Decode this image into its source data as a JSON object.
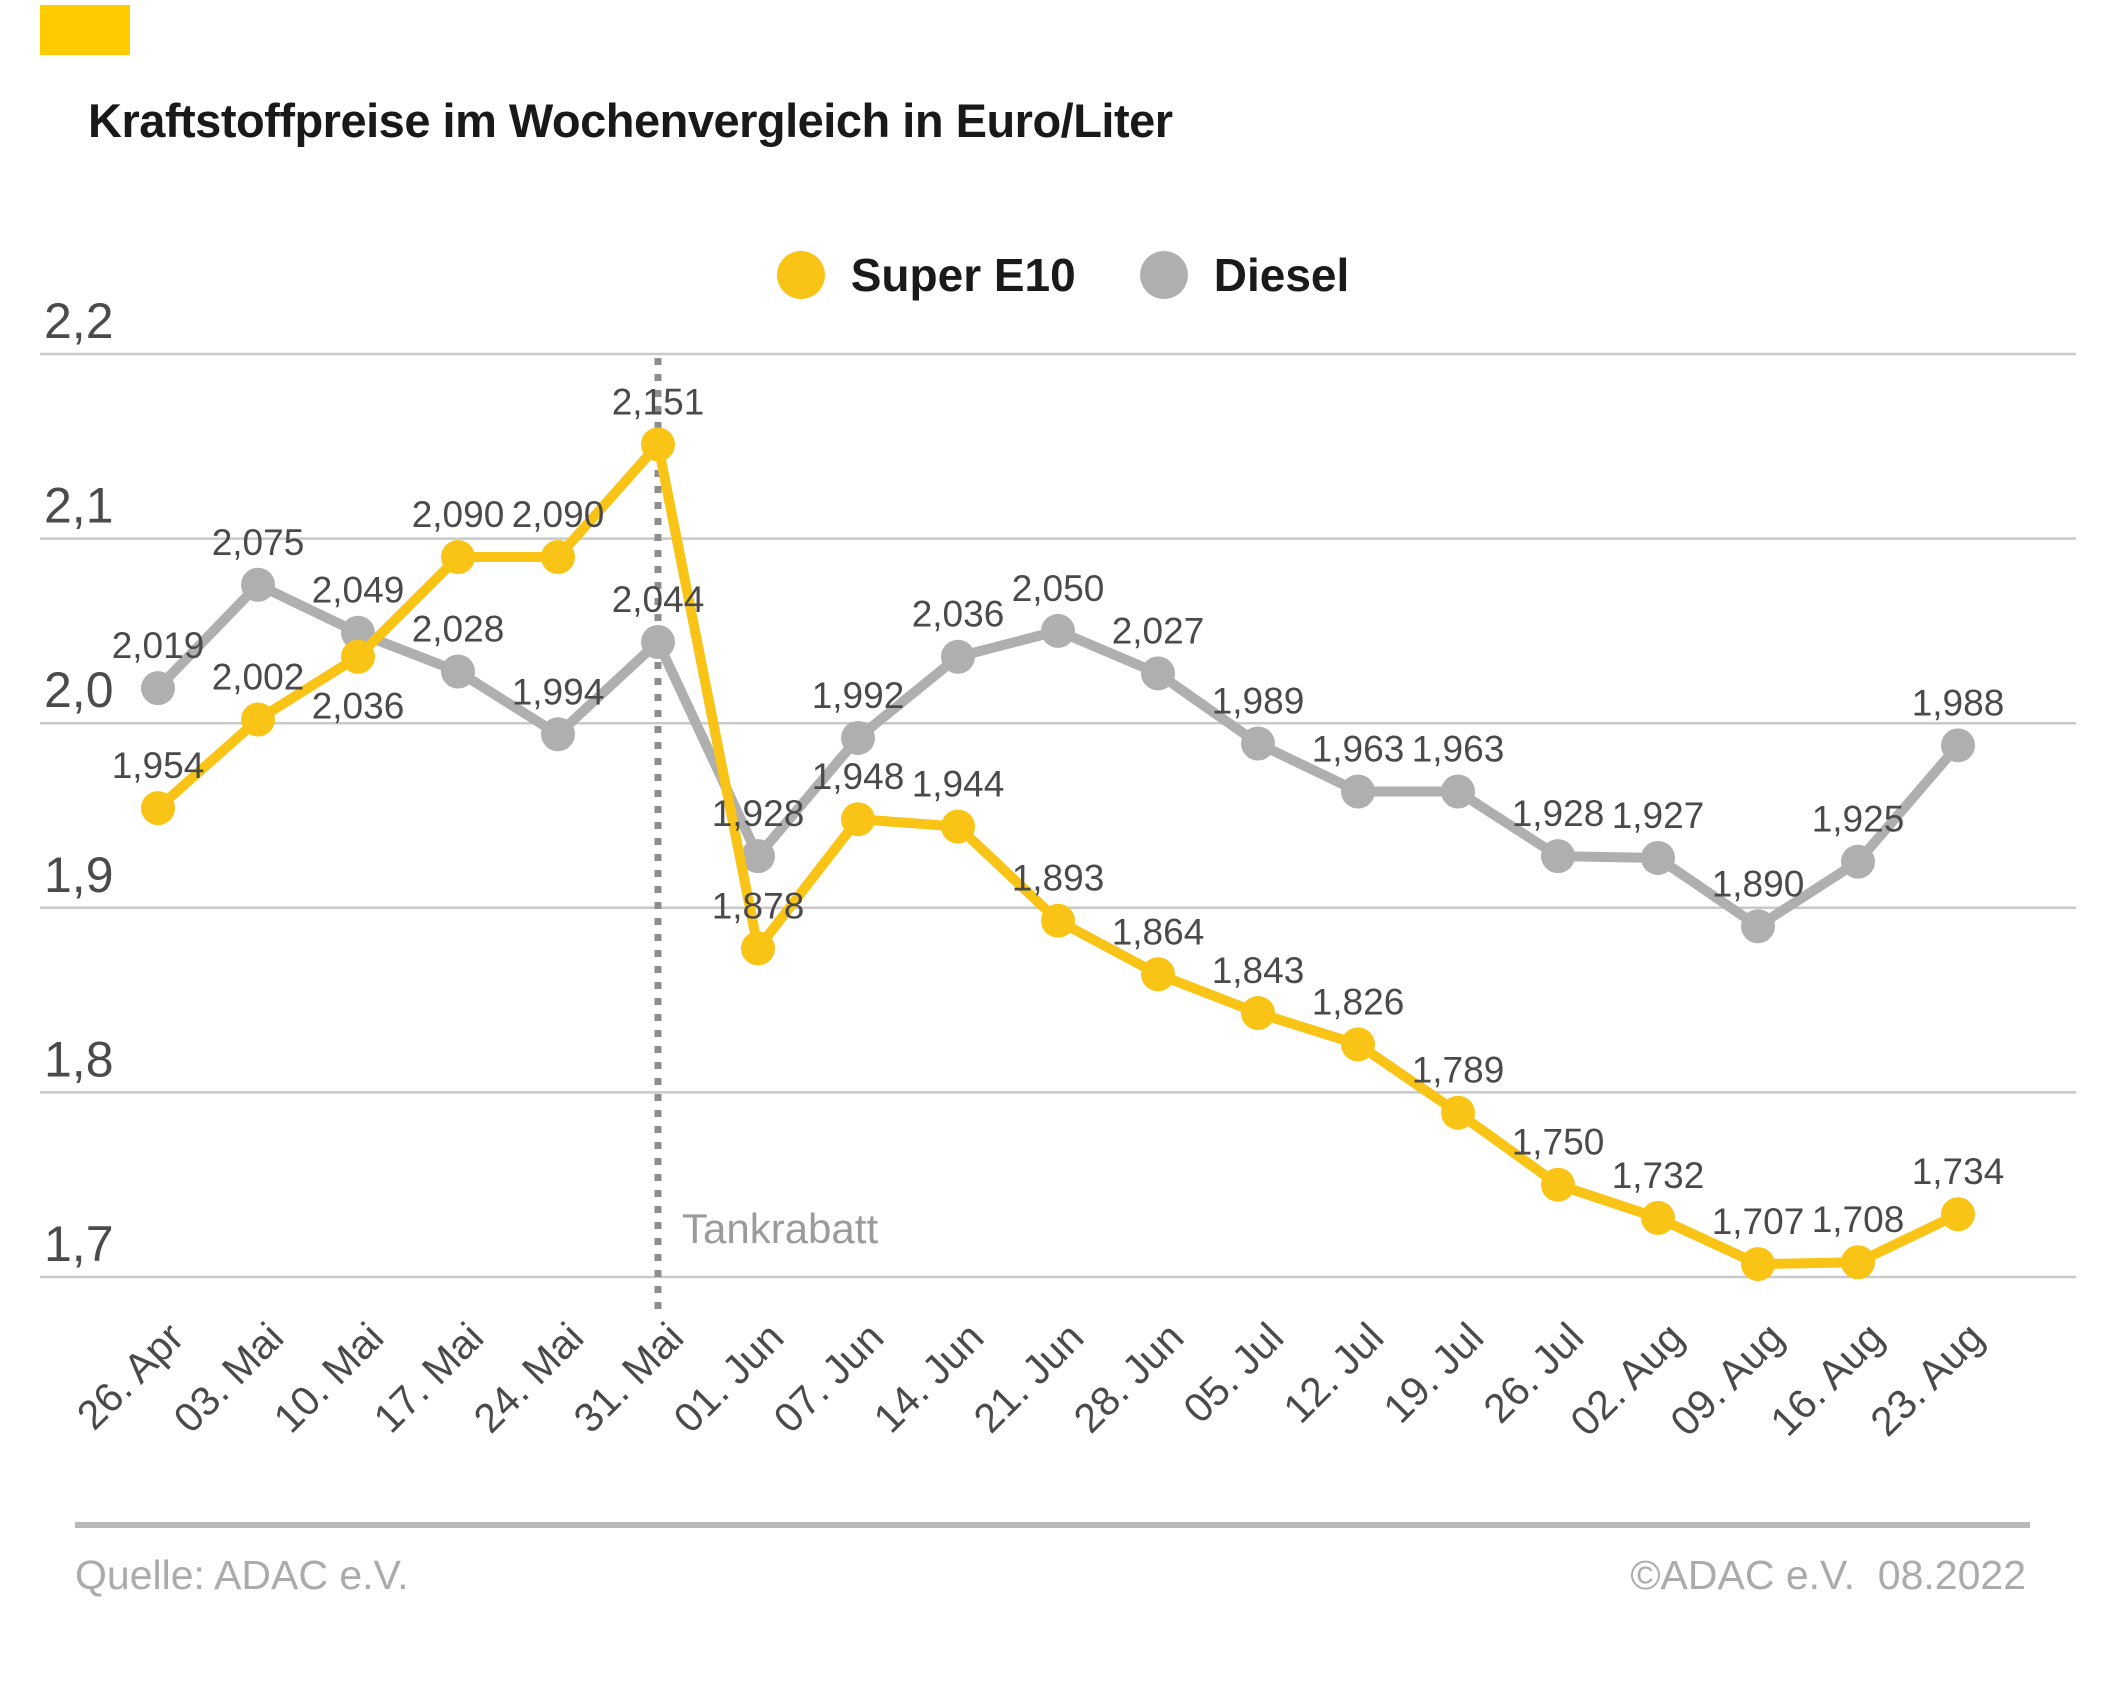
{
  "header": {
    "title": "Kraftstoffpreise im Wochenvergleich in Euro/Liter"
  },
  "branding": {
    "corner_color": "#FFCC00"
  },
  "legend": {
    "items": [
      "Super E10",
      "Diesel"
    ]
  },
  "annotation": {
    "label": "Tankrabatt",
    "category": "31. Mai",
    "line_color": "#8E8E8E",
    "text_color": "#9B9B9B"
  },
  "footer": {
    "source": "Quelle: ADAC e.V.",
    "copyright": "©ADAC e.V.  08.2022"
  },
  "chart_data": {
    "type": "line",
    "title": "Kraftstoffpreise im Wochenvergleich in Euro/Liter",
    "xlabel": "",
    "ylabel": "Euro/Liter",
    "ylim": [
      1.7,
      2.2
    ],
    "grid": true,
    "legend_position": "top",
    "decimal_separator": ",",
    "categories": [
      "26. Apr",
      "03. Mai",
      "10. Mai",
      "17. Mai",
      "24. Mai",
      "31. Mai",
      "01. Jun",
      "07. Jun",
      "14. Jun",
      "21. Jun",
      "28. Jun",
      "05. Jul",
      "12. Jul",
      "19. Jul",
      "26. Jul",
      "02. Aug",
      "09. Aug",
      "16. Aug",
      "23. Aug"
    ],
    "yticks": [
      {
        "value": 2.2,
        "label": "2,2"
      },
      {
        "value": 2.1,
        "label": "2,1"
      },
      {
        "value": 2.0,
        "label": "2,0"
      },
      {
        "value": 1.9,
        "label": "1,9"
      },
      {
        "value": 1.8,
        "label": "1,8"
      },
      {
        "value": 1.7,
        "label": "1,7"
      }
    ],
    "series": [
      {
        "name": "Super E10",
        "color": "#F9C416",
        "values": [
          1.954,
          2.002,
          2.036,
          2.09,
          2.09,
          2.151,
          1.878,
          1.948,
          1.944,
          1.893,
          1.864,
          1.843,
          1.826,
          1.789,
          1.75,
          1.732,
          1.707,
          1.708,
          1.734
        ],
        "label_below_indices": [
          2
        ]
      },
      {
        "name": "Diesel",
        "color": "#AFAFAF",
        "values": [
          2.019,
          2.075,
          2.049,
          2.028,
          1.994,
          2.044,
          1.928,
          1.992,
          2.036,
          2.05,
          2.027,
          1.989,
          1.963,
          1.963,
          1.928,
          1.927,
          1.89,
          1.925,
          1.988
        ],
        "label_below_indices": []
      }
    ],
    "style": {
      "gridline_color": "#C9C9C9",
      "data_label_color": "#4A4A4A",
      "tick_label_color": "#4B4B4B"
    }
  }
}
